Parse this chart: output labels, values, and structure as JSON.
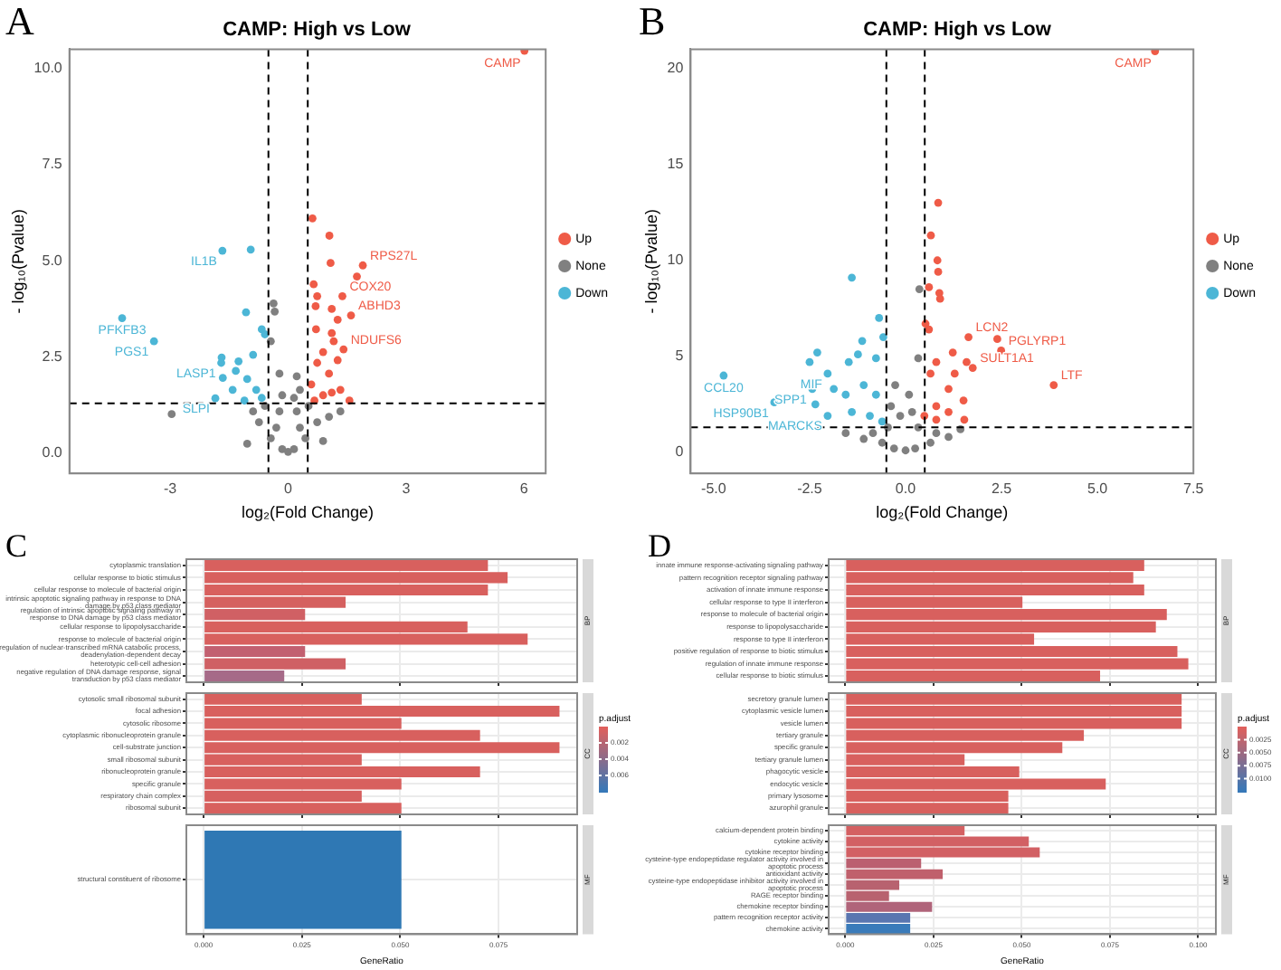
{
  "chart_data": [
    {
      "type": "scatter",
      "title": "CAMP: High vs Low",
      "xlabel": "log₂(Fold Change)",
      "ylabel": "- log₁₀(Pvalue)",
      "legend": "right",
      "marker": "circle",
      "xlim": [
        -5.56,
        6.55
      ],
      "ylim": [
        -0.52,
        10.49
      ],
      "xticks": [
        -3,
        0,
        3,
        6
      ],
      "yticks": [
        {
          "value": 0,
          "label": "0.0"
        },
        {
          "value": 2.5,
          "label": "2.5"
        },
        {
          "value": 5,
          "label": "5.0"
        },
        {
          "value": 7.5,
          "label": "7.5"
        },
        {
          "value": 10,
          "label": "10.0"
        }
      ],
      "series": [
        {
          "name": "Up",
          "color": "#ef5b47",
          "x": [
            6.01,
            0.62,
            1.05,
            1.08,
            1.9,
            1.75,
            0.65,
            0.74,
            1.38,
            1.11,
            1.6,
            1.26,
            0.7,
            0.71,
            1.11,
            1.41,
            1.16,
            0.89,
            0.74,
            1.26,
            1.04,
            0.59,
            1.33,
            0.89,
            0.67,
            1.56,
            1.11
          ],
          "values": [
            10.45,
            6.1,
            5.65,
            4.94,
            4.88,
            4.59,
            4.39,
            4.08,
            4.08,
            3.75,
            3.58,
            3.47,
            3.82,
            3.22,
            3.12,
            2.7,
            2.91,
            2.63,
            2.35,
            2.42,
            2.07,
            1.79,
            1.65,
            1.51,
            1.37,
            1.37,
            1.58
          ]
        },
        {
          "name": "None",
          "color": "#808080",
          "x": [
            -2.96,
            -0.37,
            -0.34,
            -0.44,
            -0.22,
            0.22,
            0.3,
            -0.59,
            -0.74,
            -0.44,
            -0.15,
            0,
            0.15,
            0.44,
            0.74,
            1.04,
            0.52,
            -1.04,
            0.89,
            -0.3,
            0.3,
            -0.89,
            1.33,
            -0.22,
            0.22,
            -0.15,
            0.15
          ],
          "values": [
            1.02,
            3.89,
            3.68,
            2.91,
            2.07,
            2.0,
            1.65,
            1.23,
            0.81,
            0.39,
            0.11,
            0.04,
            0.11,
            0.39,
            0.81,
            0.95,
            1.23,
            0.25,
            0.32,
            0.67,
            0.67,
            1.09,
            1.09,
            1.09,
            1.09,
            1.51,
            1.44
          ]
        },
        {
          "name": "Down",
          "color": "#4cb6d6",
          "x": [
            -4.22,
            -3.41,
            -1.67,
            -0.95,
            -1.07,
            -0.67,
            -0.59,
            -1.69,
            -1.26,
            -0.89,
            -1.33,
            -1.66,
            -1.04,
            -0.81,
            -1.41,
            -1.85,
            -1.11,
            -0.67,
            -1.7
          ],
          "values": [
            3.51,
            2.91,
            5.26,
            5.29,
            3.66,
            3.22,
            3.09,
            2.49,
            2.39,
            2.56,
            2.14,
            1.96,
            1.93,
            1.65,
            1.65,
            1.43,
            1.37,
            1.44,
            2.35
          ]
        }
      ],
      "ref_lines": [
        {
          "axis": "x",
          "value": -0.5,
          "line_style": "dashed",
          "color": "#000000"
        },
        {
          "axis": "x",
          "value": 0.5,
          "line_style": "dashed",
          "color": "#000000"
        },
        {
          "axis": "y",
          "value": 1.3,
          "line_style": "dashed",
          "color": "#000000"
        }
      ],
      "annotations": [
        "A",
        {
          "text": "CAMP",
          "x": 6.01,
          "y": 10.45
        },
        {
          "text": "RPS27L",
          "x": 1.9,
          "y": 4.88
        },
        {
          "text": "COX20",
          "x": 1.38,
          "y": 4.08
        },
        {
          "text": "ABHD3",
          "x": 1.6,
          "y": 3.58
        },
        {
          "text": "NDUFS6",
          "x": 1.41,
          "y": 2.7
        },
        {
          "text": "IL1B",
          "x": -1.67,
          "y": 5.26
        },
        {
          "text": "PFKFB3",
          "x": -4.22,
          "y": 3.51
        },
        {
          "text": "PGS1",
          "x": -3.41,
          "y": 2.91
        },
        {
          "text": "LASP1",
          "x": -1.7,
          "y": 2.35
        },
        {
          "text": "SLPI",
          "x": -1.85,
          "y": 1.43
        }
      ]
    },
    {
      "type": "scatter",
      "title": "CAMP: High vs Low",
      "xlabel": "log₂(Fold Change)",
      "ylabel": "- log₁₀(Pvalue)",
      "legend": "right",
      "marker": "circle",
      "xlim": [
        -5.6,
        7.5
      ],
      "ylim": [
        -1.1,
        21
      ],
      "xticks": [
        {
          "value": -5,
          "label": "-5.0"
        },
        {
          "value": -2.5,
          "label": "-2.5"
        },
        {
          "value": 0,
          "label": "0.0"
        },
        {
          "value": 2.5,
          "label": "2.5"
        },
        {
          "value": 5,
          "label": "5.0"
        },
        {
          "value": 7.5,
          "label": "7.5"
        }
      ],
      "yticks": [
        0,
        5,
        10,
        15,
        20
      ],
      "series": [
        {
          "name": "Up",
          "color": "#ef5b47",
          "x": [
            6.5,
            0.85,
            0.66,
            0.83,
            0.85,
            0.88,
            0.9,
            0.61,
            0.52,
            0.61,
            1.64,
            2.39,
            2.49,
            3.86,
            0.8,
            1.23,
            1.59,
            1.75,
            1.28,
            0.65,
            1.12,
            1.51,
            0.8,
            0.49,
            1.12,
            1.53,
            0.8
          ],
          "values": [
            20.9,
            13.0,
            11.3,
            10.0,
            9.4,
            8.3,
            8.0,
            8.6,
            6.7,
            6.4,
            6.0,
            5.9,
            5.3,
            3.5,
            4.7,
            5.2,
            4.7,
            4.4,
            4.1,
            4.1,
            3.3,
            2.7,
            2.4,
            1.9,
            2.1,
            1.7,
            1.7
          ]
        },
        {
          "name": "None",
          "color": "#808080",
          "x": [
            0.36,
            -0.27,
            0.33,
            0.09,
            -1.56,
            -1.09,
            -0.61,
            -0.3,
            0,
            0.25,
            0.65,
            1.12,
            1.43,
            -0.46,
            0.33,
            -0.14,
            0.17,
            -0.38,
            -0.85,
            0.8
          ],
          "values": [
            8.5,
            3.5,
            4.9,
            3.0,
            1.0,
            0.7,
            0.5,
            0.2,
            0.1,
            0.2,
            0.5,
            0.8,
            1.2,
            1.3,
            1.3,
            1.9,
            2.1,
            2.4,
            1.0,
            1.0
          ]
        },
        {
          "name": "Down",
          "color": "#4cb6d6",
          "x": [
            -1.4,
            -0.69,
            -0.58,
            -2.3,
            -1.13,
            -4.74,
            -3.42,
            -2.5,
            -2.03,
            -1.48,
            -1.24,
            -0.77,
            -2.43,
            -1.87,
            -2.35,
            -1.56,
            -1.09,
            -0.77,
            -1.4,
            -0.93,
            -0.61,
            -2.03
          ],
          "values": [
            9.1,
            7.0,
            6.0,
            5.2,
            5.8,
            4.0,
            2.6,
            4.7,
            4.1,
            4.7,
            5.1,
            4.9,
            3.3,
            3.3,
            2.5,
            3.0,
            3.5,
            3.0,
            2.1,
            1.9,
            1.6,
            1.9
          ]
        }
      ],
      "ref_lines": [
        {
          "axis": "x",
          "value": -0.5,
          "line_style": "dashed",
          "color": "#000000"
        },
        {
          "axis": "x",
          "value": 0.5,
          "line_style": "dashed",
          "color": "#000000"
        },
        {
          "axis": "y",
          "value": 1.3,
          "line_style": "dashed",
          "color": "#000000"
        }
      ],
      "annotations": [
        "B",
        {
          "text": "CAMP",
          "x": 6.5,
          "y": 20.9
        },
        {
          "text": "LCN2",
          "x": 1.64,
          "y": 6.0
        },
        {
          "text": "PGLYRP1",
          "x": 2.49,
          "y": 5.3
        },
        {
          "text": "SULT1A1",
          "x": 1.75,
          "y": 4.4
        },
        {
          "text": "LTF",
          "x": 3.86,
          "y": 3.5
        },
        {
          "text": "MIF",
          "x": -2.03,
          "y": 4.1
        },
        {
          "text": "CCL20",
          "x": -4.74,
          "y": 4.0
        },
        {
          "text": "SPP1",
          "x": -2.43,
          "y": 3.3
        },
        {
          "text": "HSP90B1",
          "x": -3.42,
          "y": 2.6
        },
        {
          "text": "MARCKS",
          "x": -2.03,
          "y": 1.9
        }
      ]
    },
    {
      "type": "bar",
      "orientation": "horizontal",
      "title": "C",
      "grid": true,
      "tick_labels": "y",
      "xlim": [
        -0.0044,
        0.095
      ],
      "xticks": [
        0,
        0.025,
        0.05,
        0.075
      ],
      "categories": [
        "cytoplasmic translation",
        "cellular response to biotic stimulus",
        "cellular response to molecule of bacterial origin",
        "intrinsic apoptotic signaling pathway in response to DNA damage by p53 class mediator",
        "regulation of intrinsic apoptotic signaling pathway in response to DNA damage by p53 class mediator",
        "cellular response to lipopolysaccharide",
        "response to molecule of bacterial origin",
        "regulation of nuclear-transcribed mRNA catabolic process, deadenylation-dependent decay",
        "heterotypic cell-cell adhesion",
        "negative regulation of DNA damage response, signal transduction by p53 class mediator"
      ],
      "values": [
        0.0723,
        0.0773,
        0.0723,
        0.0361,
        0.0258,
        0.0671,
        0.0824,
        0.0258,
        0.0361,
        0.0205
      ],
      "colors": [
        "#d8605e",
        "#d8605e",
        "#d8605e",
        "#d5605f",
        "#d06064",
        "#d8605e",
        "#d8605e",
        "#c26070",
        "#cf6064",
        "#a66a88"
      ],
      "annotations": [
        "BP"
      ]
    },
    {
      "type": "bar",
      "orientation": "horizontal",
      "grid": true,
      "tick_labels": "y",
      "xlim": [
        -0.0044,
        0.095
      ],
      "xticks": [
        0,
        0.025,
        0.05,
        0.075
      ],
      "categories": [
        "cytosolic small ribosomal subunit",
        "focal adhesion",
        "cytosolic ribosome",
        "cytoplasmic ribonucleoprotein granule",
        "cell-substrate junction",
        "small ribosomal subunit",
        "ribonucleoprotein granule",
        "specific granule",
        "respiratory chain complex",
        "ribosomal subunit"
      ],
      "values": [
        0.0402,
        0.0905,
        0.0503,
        0.0703,
        0.0905,
        0.0402,
        0.0703,
        0.0503,
        0.0402,
        0.0503
      ],
      "colors": [
        "#d8605e",
        "#d8605e",
        "#d8605e",
        "#d8605e",
        "#d8605e",
        "#d8605e",
        "#d8605e",
        "#d8605e",
        "#d6605f",
        "#d8605e"
      ],
      "annotations": [
        "CC",
        "0.002",
        "0.004",
        "0.006"
      ],
      "clabel": "p.adjust"
    },
    {
      "type": "bar",
      "orientation": "horizontal",
      "grid": true,
      "xlabel": "GeneRatio",
      "xlim": [
        -0.0044,
        0.095
      ],
      "xticks": [
        {
          "value": 0,
          "label": "0.000"
        },
        {
          "value": 0.025,
          "label": "0.025"
        },
        {
          "value": 0.05,
          "label": "0.050"
        },
        {
          "value": 0.075,
          "label": "0.075"
        }
      ],
      "categories": [
        "structural constituent of ribosome"
      ],
      "values": [
        0.0503
      ],
      "colors": [
        "#2f78b4"
      ],
      "annotations": [
        "MF"
      ]
    },
    {
      "type": "bar",
      "orientation": "horizontal",
      "title": "D",
      "grid": true,
      "tick_labels": "y",
      "xlim": [
        -0.0047,
        0.105
      ],
      "xticks": [
        0,
        0.025,
        0.05,
        0.075,
        0.1
      ],
      "categories": [
        "innate immune response-activating signaling pathway",
        "pattern recognition receptor signaling pathway",
        "activation of innate immune response",
        "cellular response to type II interferon",
        "response to molecule of bacterial origin",
        "response to lipopolysaccharide",
        "response to type II interferon",
        "positive regulation of response to biotic stimulus",
        "regulation of innate immune response",
        "cellular response to biotic stimulus"
      ],
      "values": [
        0.0847,
        0.0816,
        0.0847,
        0.0502,
        0.0911,
        0.088,
        0.0535,
        0.0941,
        0.0972,
        0.0722
      ],
      "colors": [
        "#d8605e",
        "#d8605e",
        "#d8605e",
        "#d8605e",
        "#d8605e",
        "#d8605e",
        "#d8605e",
        "#d8605e",
        "#d8605e",
        "#d8605e"
      ],
      "annotations": [
        "BP"
      ]
    },
    {
      "type": "bar",
      "orientation": "horizontal",
      "grid": true,
      "tick_labels": "y",
      "xlim": [
        -0.0047,
        0.105
      ],
      "xticks": [
        0,
        0.025,
        0.05,
        0.075,
        0.1
      ],
      "categories": [
        "secretory granule lumen",
        "cytoplasmic vesicle lumen",
        "vesicle lumen",
        "tertiary granule",
        "specific granule",
        "tertiary granule lumen",
        "phagocytic vesicle",
        "endocytic vesicle",
        "primary lysosome",
        "azurophil granule"
      ],
      "values": [
        0.0953,
        0.0953,
        0.0953,
        0.0676,
        0.0615,
        0.0338,
        0.0493,
        0.0738,
        0.0462,
        0.0462
      ],
      "colors": [
        "#d8605e",
        "#d8605e",
        "#d8605e",
        "#d8605e",
        "#d8605e",
        "#d8605e",
        "#d8605e",
        "#d8605e",
        "#d8605e",
        "#d8605e"
      ],
      "annotations": [
        "CC",
        "0.0025",
        "0.0050",
        "0.0075",
        "0.0100"
      ],
      "clabel": "p.adjust"
    },
    {
      "type": "bar",
      "orientation": "horizontal",
      "grid": true,
      "xlabel": "GeneRatio",
      "xlim": [
        -0.0047,
        0.105
      ],
      "xticks": [
        {
          "value": 0,
          "label": "0.000"
        },
        {
          "value": 0.025,
          "label": "0.025"
        },
        {
          "value": 0.05,
          "label": "0.050"
        },
        {
          "value": 0.075,
          "label": "0.075"
        },
        {
          "value": 0.1,
          "label": "0.100"
        }
      ],
      "categories": [
        "calcium-dependent protein binding",
        "cytokine activity",
        "cytokine receptor binding",
        "cysteine-type endopeptidase regulator activity involved in apoptotic process",
        "antioxidant activity",
        "cysteine-type endopeptidase inhibitor activity involved in apoptotic process",
        "RAGE receptor binding",
        "chemokine receptor binding",
        "pattern recognition receptor activity",
        "chemokine activity"
      ],
      "values": [
        0.0338,
        0.052,
        0.0551,
        0.0215,
        0.0276,
        0.0153,
        0.0124,
        0.0246,
        0.0184,
        0.0184
      ],
      "colors": [
        "#d46062",
        "#d26064",
        "#d26064",
        "#bb6070",
        "#c0606c",
        "#b8626f",
        "#b8626f",
        "#b0647a",
        "#5a76b0",
        "#3a7bba"
      ],
      "annotations": [
        "MF"
      ]
    }
  ]
}
